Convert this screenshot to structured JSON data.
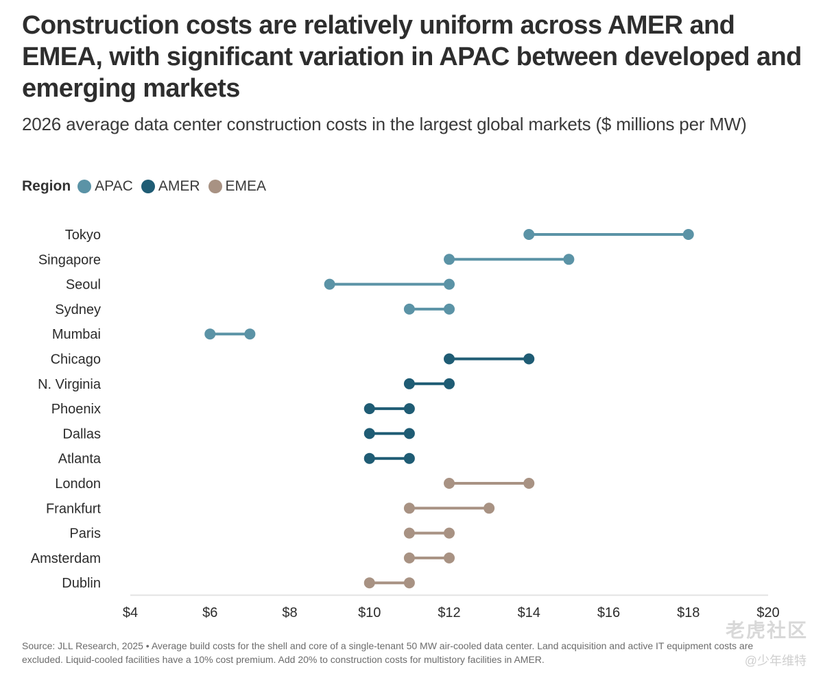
{
  "header": {
    "title": "Construction costs are relatively uniform across AMER and EMEA, with significant variation in APAC between developed and emerging markets",
    "subtitle": "2026 average data center construction costs in the largest global markets ($ millions per MW)"
  },
  "legend": {
    "title": "Region",
    "items": [
      {
        "label": "APAC",
        "color": "#5b93a6"
      },
      {
        "label": "AMER",
        "color": "#1f5c74"
      },
      {
        "label": "EMEA",
        "color": "#a89283"
      }
    ]
  },
  "chart_data": {
    "type": "dumbbell",
    "title": "Construction costs are relatively uniform across AMER and EMEA, with significant variation in APAC between developed and emerging markets",
    "subtitle": "2026 average data center construction costs in the largest global markets ($ millions per MW)",
    "xlabel": "",
    "ylabel": "",
    "xlim": [
      4,
      20
    ],
    "x_ticks": [
      4,
      6,
      8,
      10,
      12,
      14,
      16,
      18,
      20
    ],
    "x_tick_labels": [
      "$4",
      "$6",
      "$8",
      "$10",
      "$12",
      "$14",
      "$16",
      "$18",
      "$20"
    ],
    "grid": false,
    "legend_position": "top-left",
    "series_colors": {
      "APAC": "#5b93a6",
      "AMER": "#1f5c74",
      "EMEA": "#a89283"
    },
    "rows": [
      {
        "market": "Tokyo",
        "region": "APAC",
        "low": 14,
        "high": 18
      },
      {
        "market": "Singapore",
        "region": "APAC",
        "low": 12,
        "high": 15
      },
      {
        "market": "Seoul",
        "region": "APAC",
        "low": 9,
        "high": 12
      },
      {
        "market": "Sydney",
        "region": "APAC",
        "low": 11,
        "high": 12
      },
      {
        "market": "Mumbai",
        "region": "APAC",
        "low": 6,
        "high": 7
      },
      {
        "market": "Chicago",
        "region": "AMER",
        "low": 12,
        "high": 14
      },
      {
        "market": "N. Virginia",
        "region": "AMER",
        "low": 11,
        "high": 12
      },
      {
        "market": "Phoenix",
        "region": "AMER",
        "low": 10,
        "high": 11
      },
      {
        "market": "Dallas",
        "region": "AMER",
        "low": 10,
        "high": 11
      },
      {
        "market": "Atlanta",
        "region": "AMER",
        "low": 10,
        "high": 11
      },
      {
        "market": "London",
        "region": "EMEA",
        "low": 12,
        "high": 14
      },
      {
        "market": "Frankfurt",
        "region": "EMEA",
        "low": 11,
        "high": 13
      },
      {
        "market": "Paris",
        "region": "EMEA",
        "low": 11,
        "high": 12
      },
      {
        "market": "Amsterdam",
        "region": "EMEA",
        "low": 11,
        "high": 12
      },
      {
        "market": "Dublin",
        "region": "EMEA",
        "low": 10,
        "high": 11
      }
    ]
  },
  "footnote": "Source: JLL Research, 2025 • Average build costs for the shell and core of a single-tenant 50 MW air-cooled data center. Land acquisition and active IT equipment costs are excluded. Liquid-cooled facilities have a 10% cost premium. Add 20% to construction costs for multistory facilities in AMER.",
  "watermark": {
    "line1": "老虎社区",
    "line2": "@少年维特"
  }
}
